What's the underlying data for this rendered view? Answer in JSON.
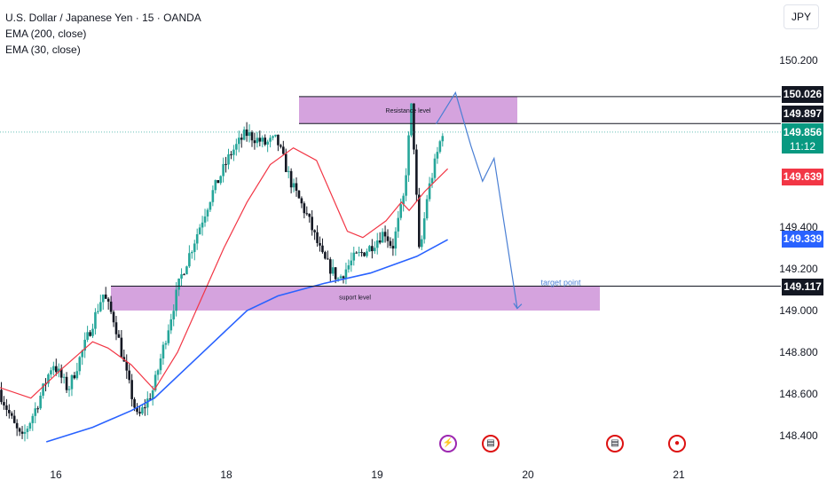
{
  "header": {
    "symbol_line": "U.S. Dollar / Japanese Yen · 15 · OANDA",
    "indicators": [
      "EMA (200, close)",
      "EMA (30, close)"
    ],
    "currency_button": "JPY"
  },
  "colors": {
    "up_candle": "#26a69a",
    "down_candle": "#131722",
    "ema200": "#2962ff",
    "ema30": "#f23645",
    "zone_fill": "#ce93d8",
    "projection": "#4a7fd4",
    "last_price_bg": "#089981",
    "ema200_label_bg": "#2962ff",
    "ema30_label_bg": "#f23645",
    "black_label_bg": "#131722"
  },
  "chart_data": {
    "type": "candlestick",
    "title": "U.S. Dollar / Japanese Yen · 15 · OANDA",
    "x_ticks": [
      "16",
      "18",
      "19",
      "20",
      "21"
    ],
    "y_ticks": [
      "150.200",
      "149.400",
      "149.200",
      "149.000",
      "148.800",
      "148.600",
      "148.400"
    ],
    "y_range": [
      148.35,
      150.3
    ],
    "price_labels": [
      {
        "value": "150.026",
        "style": "black"
      },
      {
        "value": "149.897",
        "style": "black"
      },
      {
        "value": "149.856",
        "sub": "11:12",
        "style": "last"
      },
      {
        "value": "149.639",
        "style": "ema30"
      },
      {
        "value": "149.339",
        "style": "ema200"
      },
      {
        "value": "149.117",
        "style": "black"
      }
    ],
    "annotations": {
      "resistance_label": "Resistance level",
      "support_label": "suport level",
      "target_label": "target point"
    },
    "zones": [
      {
        "name": "resistance",
        "low": 149.897,
        "high": 150.026
      },
      {
        "name": "support",
        "low": 149.0,
        "high": 149.117
      }
    ],
    "horizontal_lines": [
      150.026,
      149.897,
      149.117
    ],
    "last_price": 149.856,
    "series": [
      {
        "name": "EMA (200, close)",
        "points": [
          [
            0.06,
            148.37
          ],
          [
            0.12,
            148.44
          ],
          [
            0.17,
            148.52
          ],
          [
            0.2,
            148.58
          ],
          [
            0.24,
            148.72
          ],
          [
            0.28,
            148.86
          ],
          [
            0.32,
            149.0
          ],
          [
            0.36,
            149.07
          ],
          [
            0.42,
            149.13
          ],
          [
            0.48,
            149.18
          ],
          [
            0.54,
            149.26
          ],
          [
            0.58,
            149.34
          ]
        ]
      },
      {
        "name": "EMA (30, close)",
        "points": [
          [
            0.0,
            148.63
          ],
          [
            0.04,
            148.58
          ],
          [
            0.08,
            148.72
          ],
          [
            0.12,
            148.85
          ],
          [
            0.14,
            148.82
          ],
          [
            0.17,
            148.74
          ],
          [
            0.2,
            148.62
          ],
          [
            0.23,
            148.8
          ],
          [
            0.26,
            149.05
          ],
          [
            0.29,
            149.3
          ],
          [
            0.32,
            149.52
          ],
          [
            0.35,
            149.7
          ],
          [
            0.38,
            149.78
          ],
          [
            0.41,
            149.72
          ],
          [
            0.43,
            149.55
          ],
          [
            0.45,
            149.38
          ],
          [
            0.47,
            149.35
          ],
          [
            0.5,
            149.43
          ],
          [
            0.52,
            149.52
          ],
          [
            0.53,
            149.48
          ],
          [
            0.55,
            149.57
          ],
          [
            0.58,
            149.68
          ]
        ]
      }
    ],
    "projection_path": [
      [
        0.565,
        149.895
      ],
      [
        0.59,
        150.045
      ],
      [
        0.61,
        149.79
      ],
      [
        0.625,
        149.62
      ],
      [
        0.64,
        149.73
      ],
      [
        0.67,
        149.01
      ]
    ],
    "candles_summary": {
      "start_price": 148.62,
      "low": 148.36,
      "high": 150.03,
      "end_price": 149.86
    }
  }
}
